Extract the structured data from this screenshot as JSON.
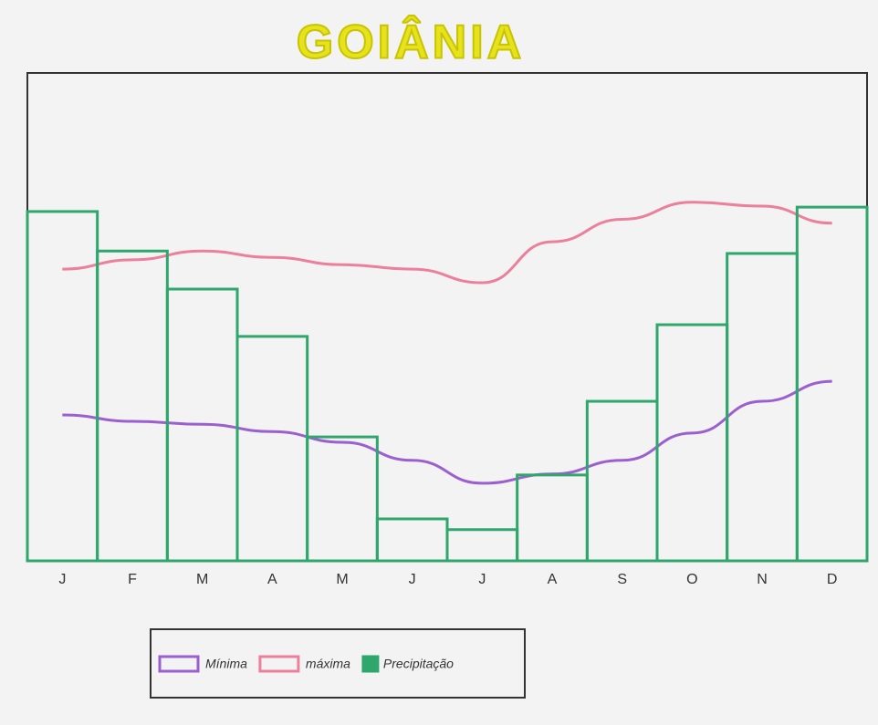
{
  "chart_data": {
    "type": "bar",
    "title": "GOIÂNIA",
    "categories": [
      "J",
      "F",
      "M",
      "A",
      "M",
      "J",
      "J",
      "A",
      "S",
      "O",
      "N",
      "D"
    ],
    "ylim": [
      0,
      100
    ],
    "series": [
      {
        "name": "Mínima",
        "type": "line",
        "color": "#9b5fd0",
        "values": [
          29.9,
          28.6,
          28,
          26.5,
          24.3,
          20.6,
          15.9,
          17.8,
          20.6,
          26.2,
          32.7,
          36.8
        ]
      },
      {
        "name": "máxima",
        "type": "line",
        "color": "#ec7f9c",
        "values": [
          59.8,
          61.7,
          63.5,
          62.2,
          60.7,
          59.8,
          57,
          65.4,
          70,
          73.5,
          72.7,
          69.2
        ]
      },
      {
        "name": "Precipitação",
        "type": "bar",
        "color": "#2ea66c",
        "values": [
          71.6,
          63.5,
          55.7,
          46,
          25.4,
          8.6,
          6.4,
          17.6,
          32.7,
          48.4,
          63,
          72.5
        ]
      }
    ]
  }
}
